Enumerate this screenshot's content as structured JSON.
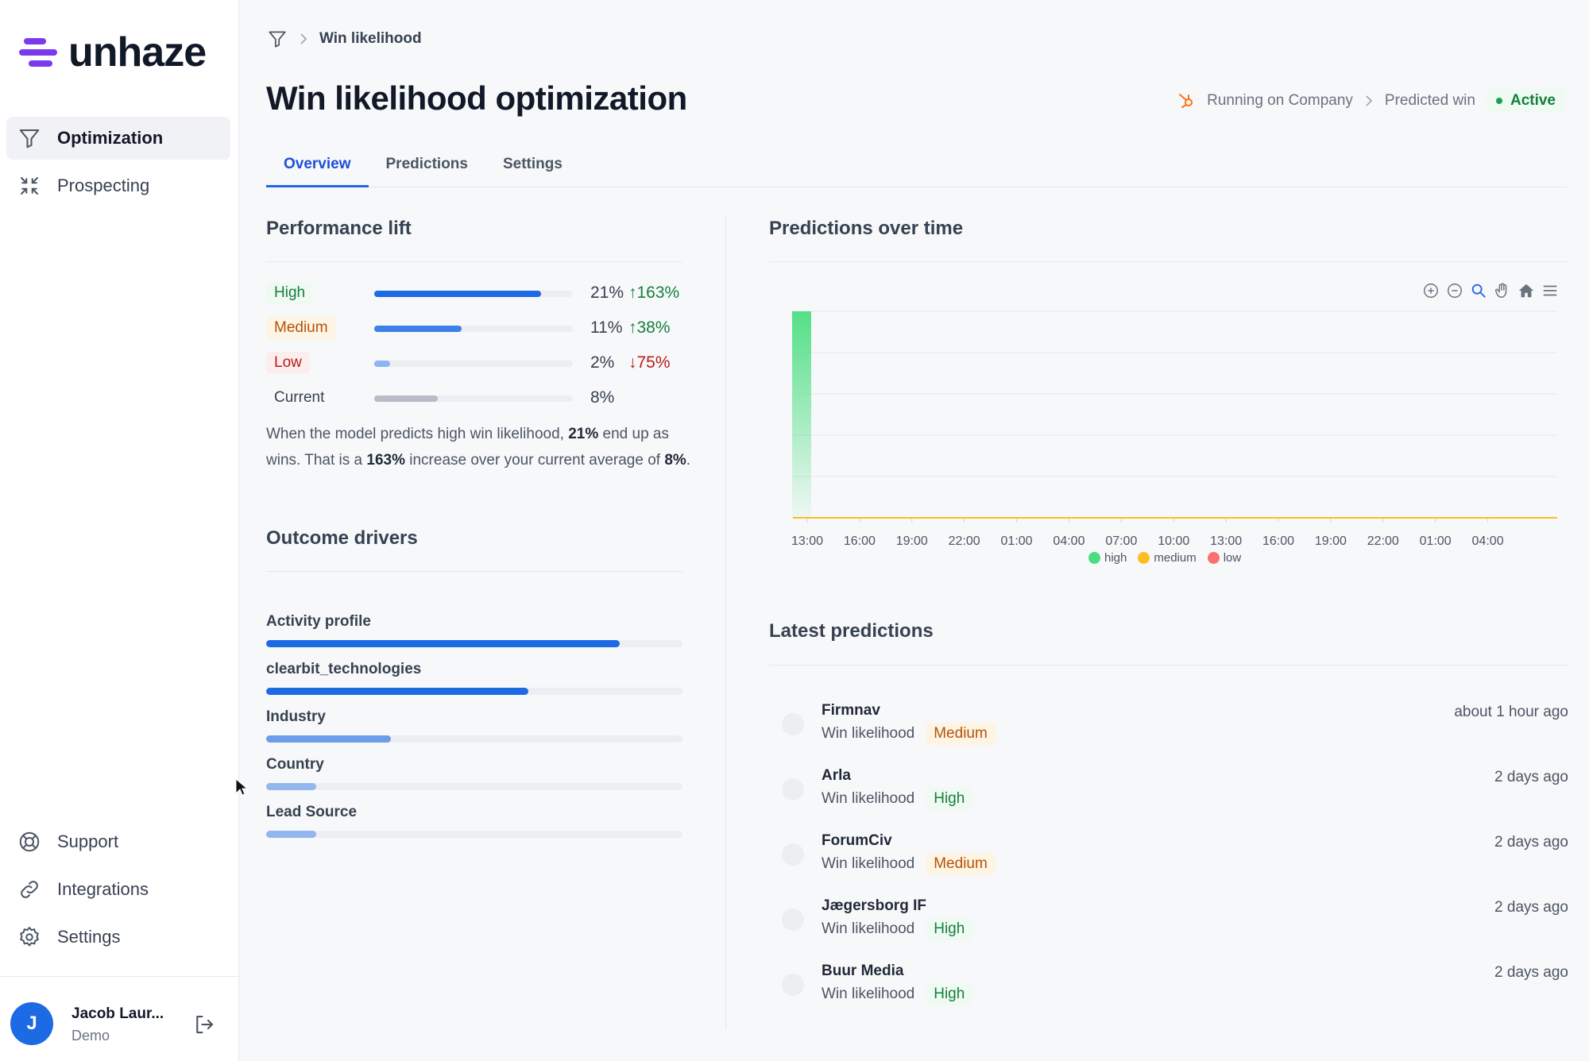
{
  "app": {
    "name": "unhaze"
  },
  "sidebar": {
    "items": [
      {
        "label": "Optimization",
        "icon": "filter-icon",
        "active": true
      },
      {
        "label": "Prospecting",
        "icon": "compress-icon",
        "active": false
      }
    ],
    "bottom_items": [
      {
        "label": "Support",
        "icon": "lifebuoy-icon"
      },
      {
        "label": "Integrations",
        "icon": "link-icon"
      },
      {
        "label": "Settings",
        "icon": "gear-icon"
      }
    ],
    "user": {
      "initial": "J",
      "name": "Jacob Laur...",
      "role": "Demo"
    }
  },
  "breadcrumb": {
    "current": "Win likelihood"
  },
  "page": {
    "title": "Win likelihood optimization",
    "running_on": "Running on Company",
    "target": "Predicted win",
    "status": "Active"
  },
  "tabs": [
    {
      "label": "Overview",
      "active": true
    },
    {
      "label": "Predictions",
      "active": false
    },
    {
      "label": "Settings",
      "active": false
    }
  ],
  "performance_lift": {
    "title": "Performance lift",
    "rows": [
      {
        "label": "High",
        "pct": "21%",
        "change": "↑163%",
        "fill": 0.84,
        "color": "#1d6ae5"
      },
      {
        "label": "Medium",
        "pct": "11%",
        "change": "↑38%",
        "fill": 0.44,
        "color": "#3f7fe8"
      },
      {
        "label": "Low",
        "pct": "2%",
        "change": "↓75%",
        "fill": 0.08,
        "color": "#8fb3f0"
      },
      {
        "label": "Current",
        "pct": "8%",
        "change": "",
        "fill": 0.32,
        "color": "#b8bcc6"
      }
    ],
    "description": {
      "p1": "When the model predicts high win likelihood, ",
      "b1": "21%",
      "p2": " end up as wins. That is a ",
      "b2": "163%",
      "p3": " increase over your current average of ",
      "b3": "8%",
      "p4": "."
    }
  },
  "outcome_drivers": {
    "title": "Outcome drivers",
    "items": [
      {
        "label": "Activity profile",
        "fill": 0.85,
        "color": "#1d6ae5"
      },
      {
        "label": "clearbit_technologies",
        "fill": 0.63,
        "color": "#1d6ae5"
      },
      {
        "label": "Industry",
        "fill": 0.3,
        "color": "#6d9ce8"
      },
      {
        "label": "Country",
        "fill": 0.12,
        "color": "#93b6ee"
      },
      {
        "label": "Lead Source",
        "fill": 0.12,
        "color": "#93b6ee"
      }
    ]
  },
  "predictions_over_time": {
    "title": "Predictions over time",
    "toolbar": [
      "zoom-in-icon",
      "zoom-out-icon",
      "magnify-icon",
      "pan-hand-icon",
      "home-icon",
      "menu-icon"
    ]
  },
  "chart_data": {
    "type": "bar",
    "categories": [
      "13:00",
      "16:00",
      "19:00",
      "22:00",
      "01:00",
      "04:00",
      "07:00",
      "10:00",
      "13:00",
      "16:00",
      "19:00",
      "22:00",
      "01:00",
      "04:00"
    ],
    "series": [
      {
        "name": "high",
        "color": "#4ade80",
        "values": [
          1,
          0,
          0,
          0,
          0,
          0,
          0,
          0,
          0,
          0,
          0,
          0,
          0,
          0
        ]
      },
      {
        "name": "medium",
        "color": "#fbbf24",
        "values": [
          0,
          0,
          0,
          0,
          0,
          0,
          0,
          0,
          0,
          0,
          0,
          0,
          0,
          0
        ]
      },
      {
        "name": "low",
        "color": "#f87171",
        "values": [
          0,
          0,
          0,
          0,
          0,
          0,
          0,
          0,
          0,
          0,
          0,
          0,
          0,
          0
        ]
      }
    ],
    "grid": true,
    "legend": "bottom"
  },
  "latest_predictions": {
    "title": "Latest predictions",
    "items": [
      {
        "name": "Firmnav",
        "label": "Win likelihood",
        "level": "Medium",
        "time": "about 1 hour ago"
      },
      {
        "name": "Arla",
        "label": "Win likelihood",
        "level": "High",
        "time": "2 days ago"
      },
      {
        "name": "ForumCiv",
        "label": "Win likelihood",
        "level": "Medium",
        "time": "2 days ago"
      },
      {
        "name": "Jægersborg IF",
        "label": "Win likelihood",
        "level": "High",
        "time": "2 days ago"
      },
      {
        "name": "Buur Media",
        "label": "Win likelihood",
        "level": "High",
        "time": "2 days ago"
      }
    ]
  }
}
